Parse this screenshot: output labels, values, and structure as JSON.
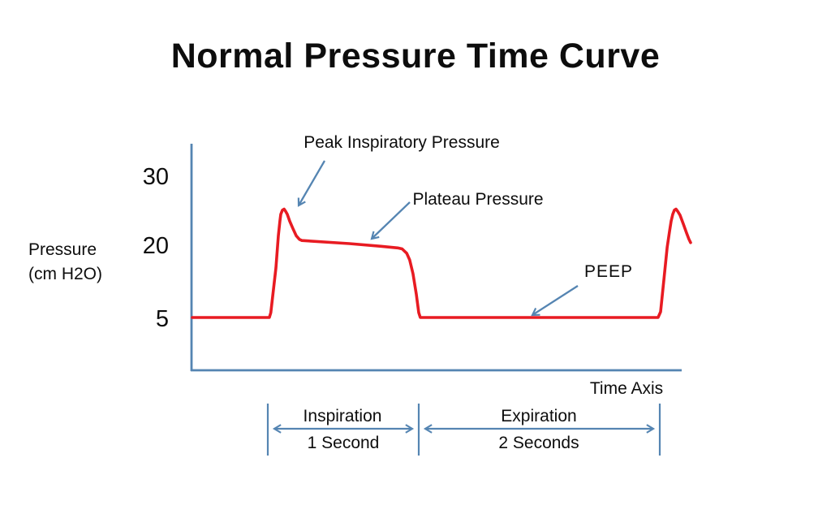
{
  "title": "Normal Pressure Time Curve",
  "chart_data": {
    "type": "line",
    "title": "Normal Pressure Time Curve",
    "xlabel": "Time Axis",
    "ylabel": "Pressure (cm H2O)",
    "ylabel_lines": {
      "line1": "Pressure",
      "line2": "(cm H2O)"
    },
    "x_unit": "seconds",
    "yticks": [
      {
        "value": 30,
        "label": "30"
      },
      {
        "value": 20,
        "label": "20"
      },
      {
        "value": 5,
        "label": "5"
      }
    ],
    "grid": false,
    "legend": "none",
    "colors": {
      "curve": "#e81b22",
      "axis_and_arrows": "#5585b2",
      "text": "#0d0d0d"
    },
    "series": [
      {
        "name": "Airway pressure",
        "points": [
          [
            -0.5,
            5
          ],
          [
            0.01,
            5
          ],
          [
            0.02,
            6.0
          ],
          [
            0.054,
            15.4
          ],
          [
            0.07,
            21.5
          ],
          [
            0.08,
            23.6
          ],
          [
            0.086,
            24.6
          ],
          [
            0.097,
            25.2
          ],
          [
            0.108,
            25.35
          ],
          [
            0.118,
            25.05
          ],
          [
            0.129,
            24.6
          ],
          [
            0.145,
            23.6
          ],
          [
            0.167,
            22.5
          ],
          [
            0.188,
            21.5
          ],
          [
            0.21,
            20.95
          ],
          [
            0.226,
            20.8
          ],
          [
            0.54,
            20.35
          ],
          [
            0.75,
            19.95
          ],
          [
            0.86,
            19.6
          ],
          [
            0.89,
            19.4
          ],
          [
            0.92,
            18.5
          ],
          [
            0.94,
            17.1
          ],
          [
            0.962,
            14.2
          ],
          [
            0.984,
            9.9
          ],
          [
            1.0,
            6.0
          ],
          [
            1.013,
            5
          ],
          [
            2.986,
            5
          ],
          [
            3.007,
            6.2
          ],
          [
            3.034,
            12.8
          ],
          [
            3.061,
            19.7
          ],
          [
            3.081,
            22.1
          ],
          [
            3.094,
            23.6
          ],
          [
            3.108,
            24.6
          ],
          [
            3.121,
            25.2
          ],
          [
            3.135,
            25.35
          ],
          [
            3.148,
            25.05
          ],
          [
            3.168,
            24.5
          ],
          [
            3.195,
            23.2
          ],
          [
            3.222,
            21.9
          ],
          [
            3.242,
            21.0
          ],
          [
            3.256,
            20.5
          ]
        ]
      }
    ],
    "annotations": [
      {
        "label": "Peak Inspiratory Pressure",
        "approx_value": 25,
        "unit": "cm H2O"
      },
      {
        "label": "Plateau Pressure",
        "approx_value": 20,
        "unit": "cm H2O"
      },
      {
        "label": "PEEP",
        "approx_value": 5,
        "unit": "cm H2O"
      }
    ],
    "phases": [
      {
        "label": "Inspiration",
        "duration_label": "1 Second",
        "duration_s": 1
      },
      {
        "label": "Expiration",
        "duration_label": "2 Seconds",
        "duration_s": 2
      }
    ]
  }
}
